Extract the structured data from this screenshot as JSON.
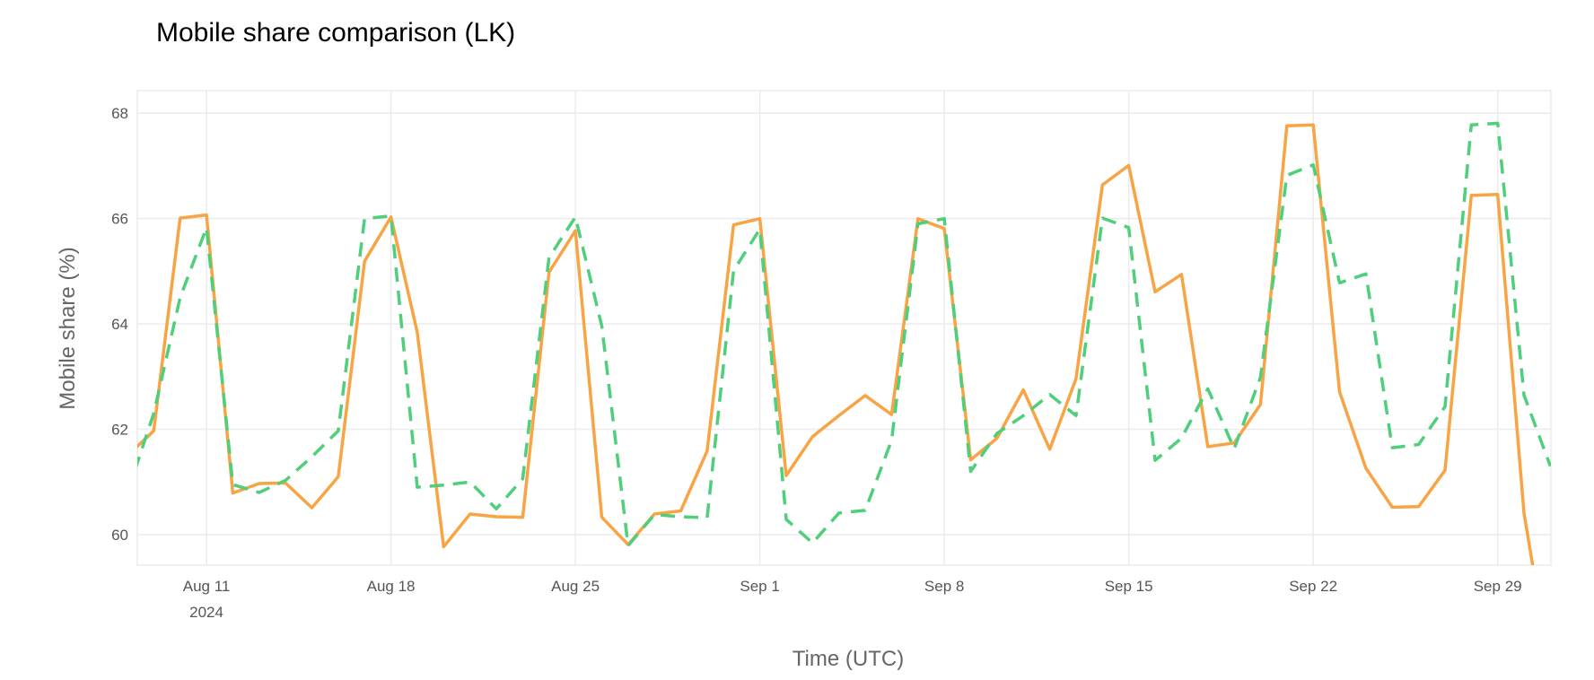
{
  "chart_data": {
    "type": "line",
    "title": "Mobile share comparison (LK)",
    "xlabel": "Time (UTC)",
    "ylabel": "Mobile share (%)",
    "xlim": [
      "2024-08-08T09:00",
      "2024-10-01T00:30"
    ],
    "ylim": [
      59.42,
      68.43
    ],
    "grid": true,
    "legend": "none",
    "yticks": [
      60,
      62,
      64,
      66,
      68
    ],
    "ytick_labels": [
      "60",
      "62",
      "64",
      "66",
      "68"
    ],
    "xticks": [
      "2024-08-11",
      "2024-08-18",
      "2024-08-25",
      "2024-09-01",
      "2024-09-08",
      "2024-09-15",
      "2024-09-22",
      "2024-09-29"
    ],
    "xtick_labels": [
      "Aug 11",
      "Aug 18",
      "Aug 25",
      "Sep 1",
      "Sep 8",
      "Sep 15",
      "Sep 22",
      "Sep 29"
    ],
    "xtick_sublabel": "2024",
    "x": [
      "2024-08-08",
      "2024-08-09",
      "2024-08-10",
      "2024-08-11",
      "2024-08-12",
      "2024-08-13",
      "2024-08-14",
      "2024-08-15",
      "2024-08-16",
      "2024-08-17",
      "2024-08-18",
      "2024-08-19",
      "2024-08-20",
      "2024-08-21",
      "2024-08-22",
      "2024-08-23",
      "2024-08-24",
      "2024-08-25",
      "2024-08-26",
      "2024-08-27",
      "2024-08-28",
      "2024-08-29",
      "2024-08-30",
      "2024-08-31",
      "2024-09-01",
      "2024-09-02",
      "2024-09-03",
      "2024-09-04",
      "2024-09-05",
      "2024-09-06",
      "2024-09-07",
      "2024-09-08",
      "2024-09-09",
      "2024-09-10",
      "2024-09-11",
      "2024-09-12",
      "2024-09-13",
      "2024-09-14",
      "2024-09-15",
      "2024-09-16",
      "2024-09-17",
      "2024-09-18",
      "2024-09-19",
      "2024-09-20",
      "2024-09-21",
      "2024-09-22",
      "2024-09-23",
      "2024-09-24",
      "2024-09-25",
      "2024-09-26",
      "2024-09-27",
      "2024-09-28",
      "2024-09-29",
      "2024-09-30",
      "2024-10-01"
    ],
    "series": [
      {
        "color": "#f8a444",
        "dash": "solid",
        "values": [
          61.5,
          61.97,
          66.01,
          66.07,
          60.79,
          60.97,
          60.98,
          60.51,
          61.1,
          65.19,
          66.03,
          63.84,
          59.77,
          60.39,
          60.34,
          60.33,
          64.98,
          65.77,
          60.33,
          59.81,
          60.39,
          60.45,
          61.59,
          65.88,
          66.0,
          61.12,
          61.86,
          62.26,
          62.64,
          62.28,
          66.0,
          65.81,
          61.42,
          61.83,
          62.75,
          61.62,
          62.96,
          66.64,
          67.01,
          64.61,
          64.94,
          61.67,
          61.74,
          62.47,
          67.76,
          67.78,
          62.71,
          61.26,
          60.52,
          60.53,
          61.22,
          66.44,
          66.46,
          60.41,
          57.4
        ]
      },
      {
        "color": "#4fcf7b",
        "dash": "dashed",
        "values": [
          60.8,
          62.3,
          64.5,
          65.83,
          60.95,
          60.8,
          61.03,
          61.48,
          61.97,
          66.0,
          66.05,
          60.9,
          60.94,
          61.0,
          60.49,
          61.06,
          65.26,
          66.03,
          63.96,
          59.79,
          60.38,
          60.34,
          60.32,
          65.01,
          65.8,
          60.29,
          59.84,
          60.41,
          60.46,
          61.79,
          65.9,
          66.0,
          61.2,
          61.92,
          62.26,
          62.66,
          62.26,
          66.01,
          65.83,
          61.41,
          61.83,
          62.77,
          61.63,
          62.99,
          66.82,
          67.02,
          64.78,
          64.95,
          61.65,
          61.71,
          62.43,
          67.78,
          67.81,
          62.65,
          61.3
        ]
      }
    ]
  }
}
